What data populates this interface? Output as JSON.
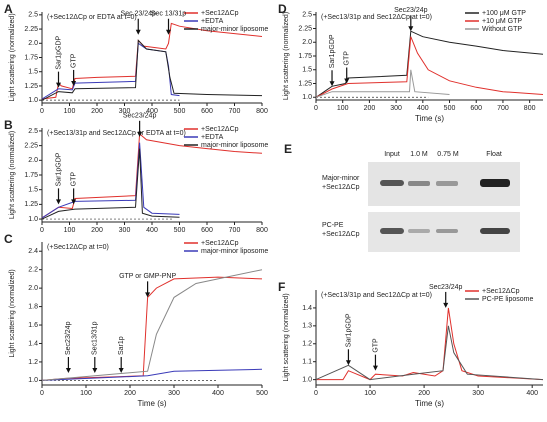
{
  "chart_data": [
    {
      "type": "line",
      "panel": "A",
      "note": "(+Sec12ΔCp or EDTA at t=0)",
      "ylabel": "Light scattering (normalized)",
      "xlim": [
        0,
        800
      ],
      "xticks": [
        0,
        100,
        200,
        300,
        400,
        500,
        600,
        700,
        800
      ],
      "ylim": [
        0.95,
        2.55
      ],
      "yticks": [
        {
          "value": 1,
          "label": "1.0"
        },
        {
          "value": 1.25,
          "label": "1.25"
        },
        {
          "value": 1.5,
          "label": "1.5"
        },
        {
          "value": 1.75,
          "label": "1.75"
        },
        {
          "value": 2,
          "label": "2.0"
        },
        {
          "value": 2.25,
          "label": "2.25"
        },
        {
          "value": 2.5,
          "label": "2.5"
        }
      ],
      "series": [
        {
          "name": "+Sec12ΔCp",
          "color": "#e0302c",
          "x": [
            0,
            50,
            60,
            70,
            110,
            120,
            200,
            340,
            350,
            370,
            450,
            460,
            470,
            500,
            600,
            700,
            800
          ],
          "values": [
            1.02,
            1.05,
            1.3,
            1.25,
            1.2,
            1.38,
            1.4,
            1.42,
            2.05,
            1.95,
            1.9,
            2.0,
            2.35,
            2.3,
            2.22,
            2.17,
            2.12
          ]
        },
        {
          "name": "+EDTA",
          "color": "#3a3ab8",
          "x": [
            0,
            60,
            110,
            120,
            340,
            350,
            380,
            450,
            460,
            470,
            500
          ],
          "values": [
            1.02,
            1.2,
            1.18,
            1.3,
            1.33,
            2.0,
            1.9,
            1.85,
            1.6,
            1.1,
            1.08
          ]
        },
        {
          "name": "major-minor liposome",
          "color": "#222222",
          "x": [
            0,
            60,
            110,
            120,
            340,
            350,
            380,
            450,
            465,
            480,
            600,
            800
          ],
          "values": [
            1.0,
            1.15,
            1.13,
            1.2,
            1.22,
            2.05,
            1.9,
            1.85,
            1.4,
            1.12,
            1.1,
            1.08
          ]
        }
      ],
      "annotations": [
        {
          "text": "Sar1pGDP",
          "x": 60,
          "y": 1.22,
          "vertical": true
        },
        {
          "text": "GTP",
          "x": 115,
          "y": 1.25,
          "vertical": true
        },
        {
          "text": "Sec 23/24p",
          "x": 350,
          "y": 2.15,
          "vertical": false
        },
        {
          "text": "Sec 13/31p",
          "x": 460,
          "y": 2.15,
          "vertical": false
        }
      ],
      "dashed_baseline": {
        "y": 1,
        "x": [
          0,
          500
        ]
      }
    },
    {
      "type": "line",
      "panel": "B",
      "note": "(+Sec13/31p and Sec12ΔCp or EDTA at t=0)",
      "ylabel": "Light scattering (normalized)",
      "xlim": [
        0,
        800
      ],
      "xticks": [
        0,
        100,
        200,
        300,
        400,
        500,
        600,
        700,
        800
      ],
      "ylim": [
        0.95,
        2.55
      ],
      "yticks": [
        {
          "value": 1,
          "label": "1.0"
        },
        {
          "value": 1.25,
          "label": "1.25"
        },
        {
          "value": 1.5,
          "label": "1.5"
        },
        {
          "value": 1.75,
          "label": "1.75"
        },
        {
          "value": 2,
          "label": "2.0"
        },
        {
          "value": 2.25,
          "label": "2.25"
        },
        {
          "value": 2.5,
          "label": "2.5"
        }
      ],
      "series": [
        {
          "name": "+Sec12ΔCp",
          "color": "#e0302c",
          "x": [
            0,
            60,
            110,
            120,
            340,
            355,
            380,
            500,
            600,
            700,
            800
          ],
          "values": [
            1.02,
            1.2,
            1.18,
            1.35,
            1.4,
            2.45,
            2.35,
            2.25,
            2.2,
            2.15,
            2.12
          ]
        },
        {
          "name": "+EDTA",
          "color": "#3a3ab8",
          "x": [
            0,
            60,
            120,
            340,
            355,
            370,
            400,
            500
          ],
          "values": [
            1.02,
            1.2,
            1.3,
            1.32,
            2.3,
            1.2,
            1.1,
            1.08
          ]
        },
        {
          "name": "major-minor liposome",
          "color": "#222222",
          "x": [
            0,
            60,
            120,
            340,
            355,
            365,
            400,
            500
          ],
          "values": [
            1.0,
            1.13,
            1.17,
            1.2,
            2.2,
            1.1,
            1.05,
            1.03
          ]
        }
      ],
      "annotations": [
        {
          "text": "Sar1pGDP",
          "x": 60,
          "y": 1.25,
          "vertical": true
        },
        {
          "text": "GTP",
          "x": 115,
          "y": 1.25,
          "vertical": true
        },
        {
          "text": "Sec23/24p",
          "x": 355,
          "y": 2.4,
          "vertical": false
        }
      ],
      "dashed_baseline": {
        "y": 1,
        "x": [
          0,
          480
        ]
      }
    },
    {
      "type": "line",
      "panel": "C",
      "note": "(+Sec12ΔCp at t=0)",
      "ylabel": "Light scattering (normalized)",
      "xlabel": "Time (s)",
      "xlim": [
        0,
        500
      ],
      "xticks": [
        0,
        100,
        200,
        300,
        400,
        500
      ],
      "ylim": [
        0.95,
        2.5
      ],
      "yticks": [
        {
          "value": 1,
          "label": "1.0"
        },
        {
          "value": 1.2,
          "label": "1.2"
        },
        {
          "value": 1.4,
          "label": "1.4"
        },
        {
          "value": 1.6,
          "label": "1.6"
        },
        {
          "value": 1.8,
          "label": "1.8"
        },
        {
          "value": 2,
          "label": "2.0"
        },
        {
          "value": 2.2,
          "label": "2.2"
        },
        {
          "value": 2.4,
          "label": "2.4"
        }
      ],
      "series": [
        {
          "name": "+Sec12ΔCp",
          "color": "#e0302c",
          "x": [
            0,
            50,
            230,
            240,
            260,
            300,
            400,
            500
          ],
          "values": [
            1.0,
            1.02,
            1.05,
            1.9,
            2.0,
            2.1,
            2.12,
            2.1
          ]
        },
        {
          "name": "major-minor liposome",
          "color": "#3a3ab8",
          "x": [
            0,
            240,
            300,
            500
          ],
          "values": [
            1.0,
            1.05,
            1.1,
            1.12
          ]
        },
        {
          "color": "#888888",
          "x": [
            0,
            240,
            260,
            300,
            350,
            500
          ],
          "values": [
            1.0,
            1.1,
            1.5,
            1.9,
            2.05,
            2.2
          ]
        }
      ],
      "annotations": [
        {
          "text": "Sec23/24p",
          "x": 60,
          "y": 1.08,
          "vertical": true
        },
        {
          "text": "Sec13/31p",
          "x": 120,
          "y": 1.08,
          "vertical": true
        },
        {
          "text": "Sar1p",
          "x": 180,
          "y": 1.08,
          "vertical": true
        },
        {
          "text": "GTP or GMP-PNP",
          "x": 240,
          "y": 1.9,
          "vertical": false
        }
      ],
      "dashed_baseline": {
        "y": 1,
        "x": [
          0,
          400
        ]
      }
    },
    {
      "type": "line",
      "panel": "D",
      "note": "(+Sec13/31p and Sec12ΔCp at t=0)",
      "ylabel": "Light scattering (normalized)",
      "xlabel": "Time (s)",
      "xlim": [
        0,
        850
      ],
      "xticks": [
        0,
        100,
        200,
        300,
        400,
        500,
        600,
        700,
        800
      ],
      "ylim": [
        0.95,
        2.55
      ],
      "yticks": [
        {
          "value": 1,
          "label": "1.0"
        },
        {
          "value": 1.25,
          "label": "1.25"
        },
        {
          "value": 1.5,
          "label": "1.5"
        },
        {
          "value": 1.75,
          "label": "1.75"
        },
        {
          "value": 2,
          "label": "2.0"
        },
        {
          "value": 2.25,
          "label": "2.25"
        },
        {
          "value": 2.5,
          "label": "2.5"
        }
      ],
      "series": [
        {
          "name": "+100 μM GTP",
          "color": "#222222",
          "x": [
            0,
            60,
            110,
            120,
            340,
            355,
            400,
            500,
            600,
            700,
            850
          ],
          "values": [
            1.0,
            1.2,
            1.25,
            1.35,
            1.4,
            2.2,
            2.1,
            2.0,
            1.93,
            1.85,
            1.78
          ]
        },
        {
          "name": "+10 μM GTP",
          "color": "#e0302c",
          "x": [
            0,
            60,
            120,
            340,
            355,
            380,
            420,
            500,
            600,
            700,
            850
          ],
          "values": [
            1.0,
            1.15,
            1.25,
            1.28,
            2.1,
            1.8,
            1.5,
            1.3,
            1.18,
            1.1,
            1.05
          ]
        },
        {
          "name": "Without GTP",
          "color": "#999999",
          "x": [
            0,
            60,
            120,
            350,
            355,
            370,
            500
          ],
          "values": [
            1.0,
            1.1,
            1.1,
            1.1,
            1.5,
            1.1,
            1.05
          ]
        }
      ],
      "annotations": [
        {
          "text": "Sar1pGDP",
          "x": 60,
          "y": 1.2,
          "vertical": true
        },
        {
          "text": "GTP",
          "x": 115,
          "y": 1.25,
          "vertical": true
        },
        {
          "text": "Sec23/24p",
          "x": 355,
          "y": 2.2,
          "vertical": false
        }
      ],
      "dashed_baseline": {
        "y": 1,
        "x": [
          0,
          420
        ]
      }
    },
    {
      "type": "line",
      "panel": "F",
      "note": "(+Sec13/31p and Sec12ΔCp at t=0)",
      "ylabel": "Light scattering (normalized)",
      "xlabel": "Time (s)",
      "xlim": [
        0,
        420
      ],
      "xticks": [
        0,
        100,
        200,
        300,
        400
      ],
      "ylim": [
        0.97,
        1.5
      ],
      "yticks": [
        {
          "value": 1,
          "label": "1.0"
        },
        {
          "value": 1.1,
          "label": "1.1"
        },
        {
          "value": 1.2,
          "label": "1.2"
        },
        {
          "value": 1.3,
          "label": "1.3"
        },
        {
          "value": 1.4,
          "label": "1.4"
        }
      ],
      "series": [
        {
          "name": "+Sec12ΔCp",
          "color": "#e0302c",
          "x": [
            0,
            50,
            60,
            100,
            110,
            160,
            180,
            220,
            235,
            245,
            255,
            270,
            300,
            420
          ],
          "values": [
            1.0,
            1.0,
            1.05,
            1.0,
            1.03,
            1.02,
            1.04,
            1.02,
            1.05,
            1.4,
            1.2,
            1.05,
            1.02,
            1.0
          ]
        },
        {
          "name": "PC-PE liposome",
          "color": "#555555",
          "x": [
            0,
            60,
            100,
            180,
            235,
            245,
            255,
            280,
            420
          ],
          "values": [
            1.0,
            1.08,
            1.0,
            1.03,
            1.05,
            1.3,
            1.15,
            1.03,
            1.0
          ]
        }
      ],
      "annotations": [
        {
          "text": "Sar1pGDP",
          "x": 60,
          "y": 1.08,
          "vertical": true
        },
        {
          "text": "GTP",
          "x": 110,
          "y": 1.05,
          "vertical": true
        },
        {
          "text": "Sec23/24p",
          "x": 240,
          "y": 1.4,
          "vertical": false
        }
      ]
    }
  ],
  "gel_panel": {
    "panel": "E",
    "column_labels": [
      "Input",
      "1.0 M",
      "0.75 M",
      "Float"
    ],
    "row_labels": [
      [
        "Major-minor",
        "+Sec12ΔCp"
      ],
      [
        "PC-PE",
        "+Sec12ΔCp"
      ]
    ]
  }
}
